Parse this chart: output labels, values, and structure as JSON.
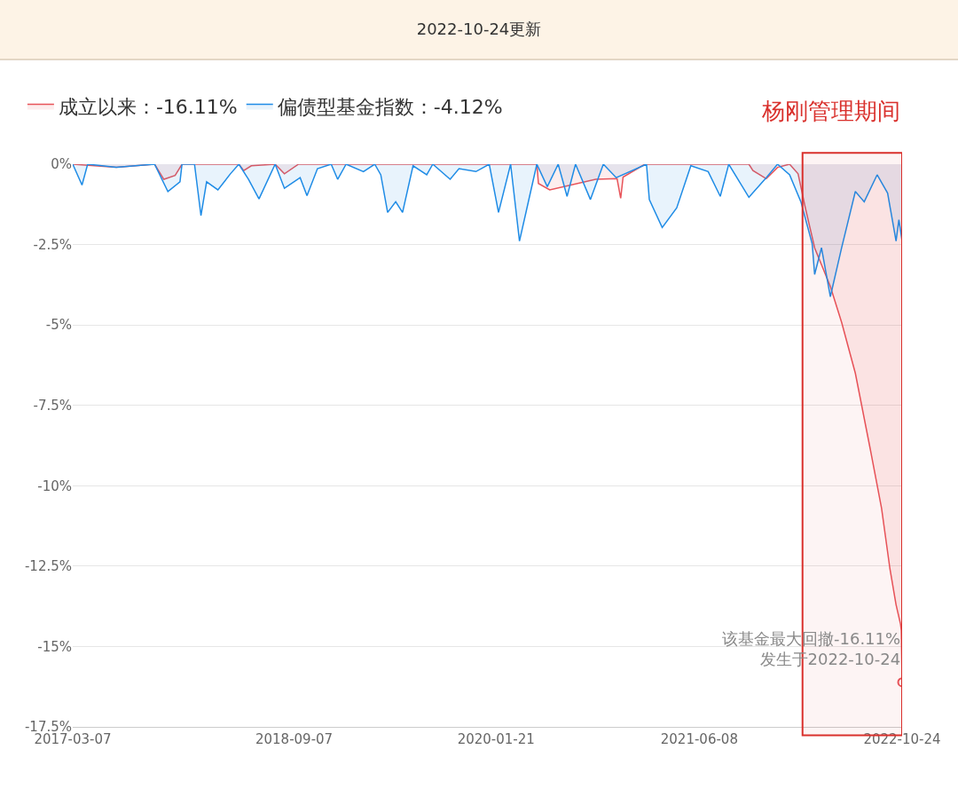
{
  "chart_data": {
    "type": "area",
    "title": "2022-10-24更新",
    "xlim": [
      "2017-03-07",
      "2022-10-24"
    ],
    "xticks": [
      {
        "value": "2017-03-07",
        "label": "2017-03-07"
      },
      {
        "value": "2018-09-07",
        "label": "2018-09-07"
      },
      {
        "value": "2020-01-21",
        "label": "2020-01-21"
      },
      {
        "value": "2021-06-08",
        "label": "2021-06-08"
      },
      {
        "value": "2022-10-24",
        "label": "2022-10-24"
      }
    ],
    "ylim": [
      -17.5,
      0
    ],
    "yticks": [
      {
        "value": 0,
        "label": "0%"
      },
      {
        "value": -2.5,
        "label": "-2.5%"
      },
      {
        "value": -5,
        "label": "-5%"
      },
      {
        "value": -7.5,
        "label": "-7.5%"
      },
      {
        "value": -10,
        "label": "-10%"
      },
      {
        "value": -12.5,
        "label": "-12.5%"
      },
      {
        "value": -15,
        "label": "-15%"
      },
      {
        "value": -17.5,
        "label": "-17.5%"
      }
    ],
    "grid": "y",
    "legend": "top left",
    "marker": "none",
    "line_style": "solid",
    "series": [
      {
        "name": "成立以来：-16.11%",
        "color": "#e8545a",
        "x": [
          "2017-03-07",
          "2017-06-23",
          "2017-09-26",
          "2017-10-19",
          "2017-11-16",
          "2017-12-03",
          "2018-04-23",
          "2018-05-05",
          "2018-05-24",
          "2018-07-22",
          "2018-08-14",
          "2018-09-18",
          "2020-05-01",
          "2020-05-05",
          "2020-06-02",
          "2020-09-24",
          "2020-11-16",
          "2020-11-25",
          "2020-12-01",
          "2021-01-24",
          "2021-10-09",
          "2021-10-19",
          "2021-11-21",
          "2021-12-19",
          "2022-01-18",
          "2022-02-08",
          "2022-02-25",
          "2022-03-21",
          "2022-04-29",
          "2022-05-27",
          "2022-06-30",
          "2022-08-06",
          "2022-09-03",
          "2022-09-24",
          "2022-10-09",
          "2022-10-20",
          "2022-10-22",
          "2022-10-24"
        ],
        "values": [
          0,
          -0.1,
          0,
          -0.47,
          -0.35,
          0,
          0,
          -0.2,
          -0.05,
          0,
          -0.3,
          0,
          0,
          -0.6,
          -0.8,
          -0.47,
          -0.45,
          -1.06,
          -0.4,
          0,
          0,
          -0.2,
          -0.45,
          -0.1,
          0,
          -0.3,
          -1.3,
          -2.6,
          -3.8,
          -4.92,
          -6.5,
          -8.86,
          -10.7,
          -12.6,
          -13.7,
          -14.3,
          -14.5,
          -16.11
        ]
      },
      {
        "name": "偏债型基金指数：-4.12%",
        "color": "#1f8ce6",
        "x": [
          "2017-03-07",
          "2017-03-30",
          "2017-04-13",
          "2017-06-23",
          "2017-09-26",
          "2017-10-29",
          "2017-11-28",
          "2017-12-03",
          "2018-01-03",
          "2018-01-19",
          "2018-02-02",
          "2018-03-02",
          "2018-04-02",
          "2018-04-23",
          "2018-05-17",
          "2018-06-12",
          "2018-07-22",
          "2018-08-14",
          "2018-09-22",
          "2018-10-09",
          "2018-11-04",
          "2018-12-08",
          "2018-12-24",
          "2019-01-14",
          "2019-02-26",
          "2019-03-26",
          "2019-04-10",
          "2019-04-27",
          "2019-05-17",
          "2019-06-03",
          "2019-06-29",
          "2019-08-02",
          "2019-08-17",
          "2019-09-29",
          "2019-10-21",
          "2019-12-02",
          "2020-01-04",
          "2020-01-27",
          "2020-02-26",
          "2020-03-19",
          "2020-04-05",
          "2020-05-01",
          "2020-05-27",
          "2020-06-23",
          "2020-07-15",
          "2020-08-05",
          "2020-09-11",
          "2020-10-13",
          "2020-11-14",
          "2021-01-28",
          "2021-02-04",
          "2021-03-08",
          "2021-04-13",
          "2021-05-18",
          "2021-06-30",
          "2021-07-30",
          "2021-08-20",
          "2021-10-09",
          "2021-11-21",
          "2021-12-19",
          "2022-01-18",
          "2022-02-15",
          "2022-03-15",
          "2022-03-21",
          "2022-04-07",
          "2022-04-29",
          "2022-05-27",
          "2022-06-30",
          "2022-07-22",
          "2022-08-23",
          "2022-09-18",
          "2022-10-09",
          "2022-10-16",
          "2022-10-24"
        ],
        "values": [
          0,
          -0.65,
          0,
          -0.1,
          0,
          -0.85,
          -0.55,
          0,
          0,
          -1.6,
          -0.55,
          -0.8,
          -0.3,
          0,
          -0.47,
          -1.08,
          0,
          -0.75,
          -0.42,
          -0.98,
          -0.14,
          0,
          -0.47,
          0,
          -0.23,
          0,
          -0.33,
          -1.5,
          -1.17,
          -1.5,
          -0.05,
          -0.33,
          0,
          -0.47,
          -0.14,
          -0.23,
          0,
          -1.5,
          0,
          -2.39,
          -1.45,
          0,
          -0.7,
          0,
          -1.0,
          0,
          -1.1,
          0,
          -0.42,
          0,
          -1.1,
          -1.97,
          -1.36,
          -0.05,
          -0.23,
          -1.0,
          0,
          -1.03,
          -0.42,
          0,
          -0.33,
          -1.17,
          -2.48,
          -3.43,
          -2.6,
          -4.12,
          -2.6,
          -0.85,
          -1.17,
          -0.33,
          -0.9,
          -2.39,
          -1.73,
          -2.39
        ]
      }
    ],
    "bands": [
      {
        "axis": "x",
        "from": "2022-02-19",
        "to": "2022-10-24",
        "label": "杨刚管理期间",
        "color": "#d9302c"
      }
    ],
    "annotations": [
      {
        "text": "该基金最大回撤-16.11%\n发生于2022-10-24",
        "x": "2022-10-24",
        "y": -16.11
      }
    ]
  }
}
